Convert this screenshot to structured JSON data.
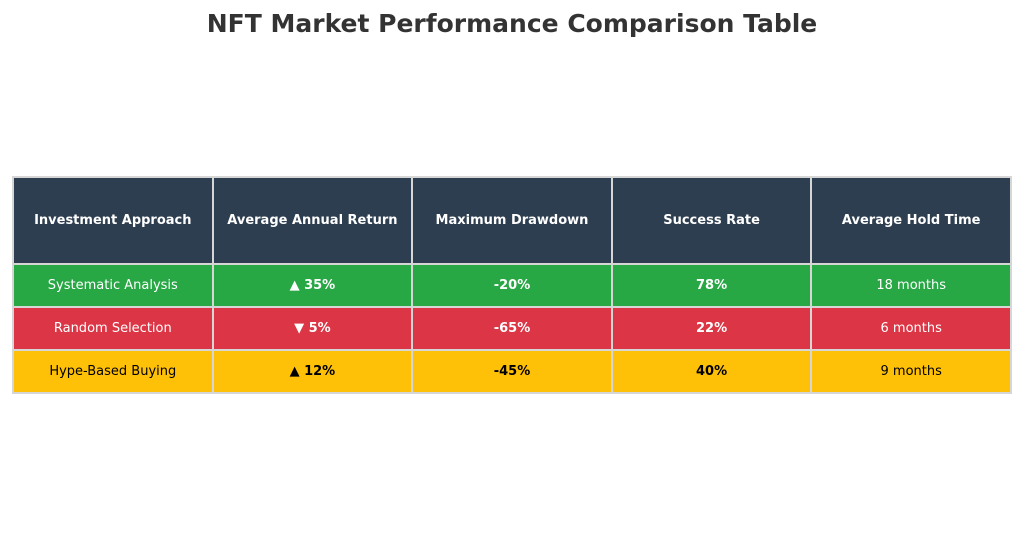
{
  "chart_data": {
    "type": "table",
    "title": "NFT Market Performance Comparison Table",
    "columns": [
      "Investment Approach",
      "Average Annual Return",
      "Maximum Drawdown",
      "Success Rate",
      "Average Hold Time"
    ],
    "rows": [
      {
        "approach": "Systematic Analysis",
        "return": "▲ 35%",
        "drawdown": "-20%",
        "success": "78%",
        "hold": "18 months",
        "color": "#28a745"
      },
      {
        "approach": "Random Selection",
        "return": "▼ 5%",
        "drawdown": "-65%",
        "success": "22%",
        "hold": "6 months",
        "color": "#dc3545"
      },
      {
        "approach": "Hype-Based Buying",
        "return": "▲ 12%",
        "drawdown": "-45%",
        "success": "40%",
        "hold": "9 months",
        "color": "#ffc107"
      }
    ],
    "header_color": "#2d3e50"
  }
}
